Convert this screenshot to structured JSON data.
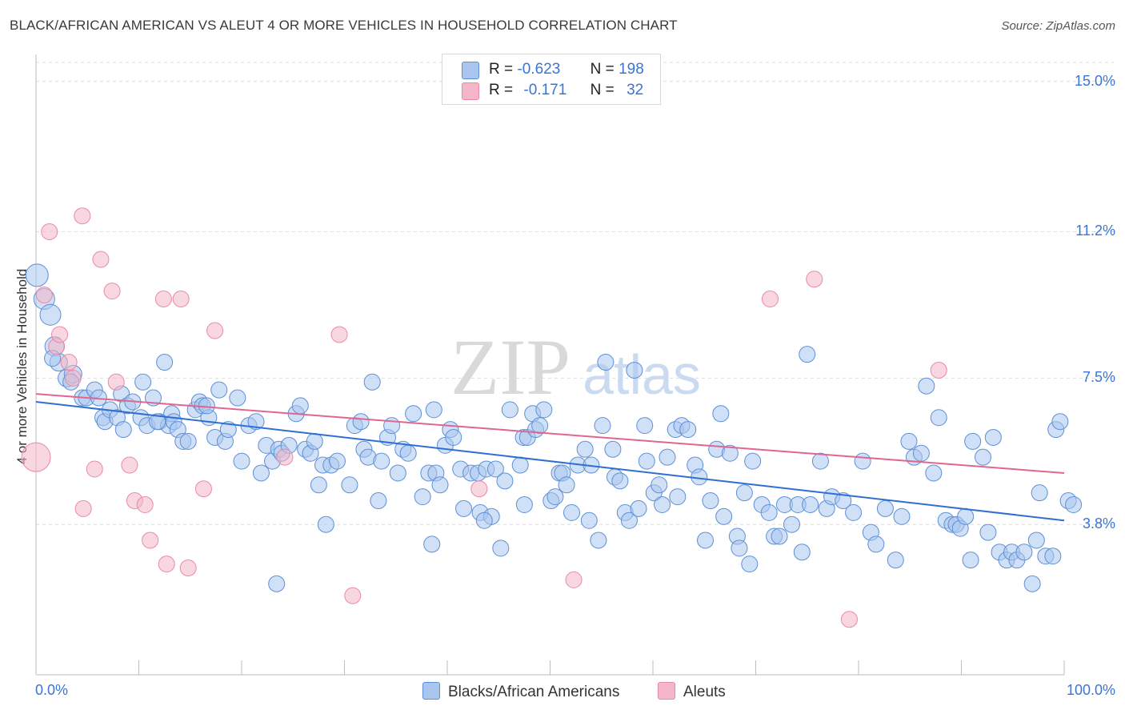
{
  "title": "BLACK/AFRICAN AMERICAN VS ALEUT 4 OR MORE VEHICLES IN HOUSEHOLD CORRELATION CHART",
  "source": "Source: ZipAtlas.com",
  "watermark": {
    "zip": "ZIP",
    "atlas": "atlas"
  },
  "colors": {
    "blue_fill": "#a9c6ef",
    "blue_stroke": "#5d8fd6",
    "blue_line": "#2f6fd4",
    "pink_fill": "#f4b6c9",
    "pink_stroke": "#e88aa6",
    "pink_line": "#e06690",
    "axis_text": "#3b74d4",
    "grid": "#dedede"
  },
  "legend_top": {
    "rows": [
      {
        "r_label": "R =",
        "r_value": "-0.623",
        "n_label": "N =",
        "n_value": "198",
        "color": "#a9c6ef"
      },
      {
        "r_label": "R =",
        "r_value": "-0.171",
        "n_label": "N =",
        "n_value": "32",
        "color": "#f4b6c9"
      }
    ]
  },
  "legend_bottom": {
    "series1": "Blacks/African Americans",
    "series2": "Aleuts"
  },
  "axes": {
    "x_min_label": "0.0%",
    "x_max_label": "100.0%",
    "ylabel": "4 or more Vehicles in Household",
    "y_ticks": [
      "3.8%",
      "7.5%",
      "11.2%",
      "15.0%"
    ]
  },
  "chart_data": {
    "type": "scatter",
    "title": "BLACK/AFRICAN AMERICAN VS ALEUT 4 OR MORE VEHICLES IN HOUSEHOLD CORRELATION CHART",
    "xlabel": "",
    "ylabel": "4 or more Vehicles in Household",
    "xlim": [
      0,
      100
    ],
    "ylim": [
      0,
      15.6
    ],
    "y_ticks": [
      3.8,
      7.5,
      11.2,
      15.0
    ],
    "grid": true,
    "legend_position": "top-center",
    "series": [
      {
        "name": "Blacks/African Americans",
        "r": -0.623,
        "n": 198,
        "trend": {
          "x": [
            0,
            100
          ],
          "y": [
            6.9,
            3.9
          ]
        },
        "points": [
          [
            0.1,
            10.1
          ],
          [
            0.8,
            9.5
          ],
          [
            1.4,
            9.1
          ],
          [
            1.8,
            8.3
          ],
          [
            2.2,
            7.9
          ],
          [
            3,
            7.5
          ],
          [
            3.6,
            7.6
          ],
          [
            4.5,
            7
          ],
          [
            4.9,
            7
          ],
          [
            5.7,
            7.2
          ],
          [
            6.5,
            6.5
          ],
          [
            6.7,
            6.4
          ],
          [
            7.2,
            6.7
          ],
          [
            7.9,
            6.5
          ],
          [
            8.3,
            7.1
          ],
          [
            8.9,
            6.8
          ],
          [
            9.4,
            6.9
          ],
          [
            10.2,
            6.5
          ],
          [
            10.4,
            7.4
          ],
          [
            10.8,
            6.3
          ],
          [
            11.4,
            7
          ],
          [
            12,
            6.4
          ],
          [
            12.5,
            7.9
          ],
          [
            12.9,
            6.3
          ],
          [
            13.2,
            6.6
          ],
          [
            13.4,
            6.4
          ],
          [
            13.8,
            6.2
          ],
          [
            14.3,
            5.9
          ],
          [
            14.8,
            5.9
          ],
          [
            15.5,
            6.7
          ],
          [
            15.9,
            6.9
          ],
          [
            16.2,
            6.8
          ],
          [
            16.8,
            6.5
          ],
          [
            17.4,
            6
          ],
          [
            17.8,
            7.2
          ],
          [
            18.4,
            5.9
          ],
          [
            18.7,
            6.2
          ],
          [
            19.6,
            7
          ],
          [
            20,
            5.4
          ],
          [
            20.7,
            6.3
          ],
          [
            21.4,
            6.4
          ],
          [
            21.9,
            5.1
          ],
          [
            22.4,
            5.8
          ],
          [
            23,
            5.4
          ],
          [
            23.6,
            5.7
          ],
          [
            23.9,
            5.6
          ],
          [
            24.6,
            5.8
          ],
          [
            25.3,
            6.6
          ],
          [
            25.7,
            6.8
          ],
          [
            26.2,
            5.7
          ],
          [
            26.7,
            5.6
          ],
          [
            27.1,
            5.9
          ],
          [
            27.5,
            4.8
          ],
          [
            27.9,
            5.3
          ],
          [
            28.7,
            5.3
          ],
          [
            29.3,
            5.4
          ],
          [
            30.5,
            4.8
          ],
          [
            31,
            6.3
          ],
          [
            31.6,
            6.4
          ],
          [
            31.9,
            5.7
          ],
          [
            32.3,
            5.5
          ],
          [
            32.7,
            7.4
          ],
          [
            33.3,
            4.4
          ],
          [
            33.6,
            5.4
          ],
          [
            34.2,
            6
          ],
          [
            34.6,
            6.3
          ],
          [
            35.2,
            5.1
          ],
          [
            35.7,
            5.7
          ],
          [
            36.2,
            5.6
          ],
          [
            36.7,
            6.6
          ],
          [
            37.6,
            4.5
          ],
          [
            38.2,
            5.1
          ],
          [
            38.7,
            6.7
          ],
          [
            38.9,
            5.1
          ],
          [
            39.3,
            4.8
          ],
          [
            39.8,
            5.8
          ],
          [
            40.3,
            6.2
          ],
          [
            40.6,
            6
          ],
          [
            41.3,
            5.2
          ],
          [
            41.6,
            4.2
          ],
          [
            42.3,
            5.1
          ],
          [
            43,
            5.1
          ],
          [
            43.2,
            4.1
          ],
          [
            43.8,
            5.2
          ],
          [
            44.3,
            4
          ],
          [
            44.7,
            5.2
          ],
          [
            45.6,
            4.9
          ],
          [
            46.1,
            6.7
          ],
          [
            47.1,
            5.3
          ],
          [
            47.4,
            6
          ],
          [
            47.8,
            6
          ],
          [
            48.3,
            6.6
          ],
          [
            48.6,
            6.2
          ],
          [
            49,
            6.3
          ],
          [
            49.4,
            6.7
          ],
          [
            50.1,
            4.4
          ],
          [
            50.5,
            4.5
          ],
          [
            50.9,
            5.1
          ],
          [
            51.2,
            5.1
          ],
          [
            51.6,
            4.8
          ],
          [
            52.1,
            4.1
          ],
          [
            52.7,
            5.3
          ],
          [
            53.4,
            5.7
          ],
          [
            53.8,
            3.9
          ],
          [
            54,
            5.3
          ],
          [
            55.1,
            6.3
          ],
          [
            55.4,
            7.9
          ],
          [
            56.1,
            5.7
          ],
          [
            56.3,
            5
          ],
          [
            56.8,
            4.9
          ],
          [
            57.3,
            4.1
          ],
          [
            57.7,
            3.9
          ],
          [
            58.2,
            7.7
          ],
          [
            58.6,
            4.2
          ],
          [
            59.2,
            6.3
          ],
          [
            59.4,
            5.4
          ],
          [
            60.1,
            4.6
          ],
          [
            60.6,
            4.8
          ],
          [
            60.9,
            4.3
          ],
          [
            61.4,
            5.5
          ],
          [
            62.2,
            6.2
          ],
          [
            62.8,
            6.3
          ],
          [
            63.4,
            6.2
          ],
          [
            64.1,
            5.3
          ],
          [
            64.5,
            5
          ],
          [
            65.1,
            3.4
          ],
          [
            65.6,
            4.4
          ],
          [
            66.2,
            5.7
          ],
          [
            66.6,
            6.6
          ],
          [
            66.9,
            4
          ],
          [
            67.5,
            5.6
          ],
          [
            68.2,
            3.5
          ],
          [
            68.4,
            3.2
          ],
          [
            68.9,
            4.6
          ],
          [
            69.4,
            2.8
          ],
          [
            69.7,
            5.4
          ],
          [
            70.6,
            4.3
          ],
          [
            71.3,
            4.1
          ],
          [
            71.8,
            3.5
          ],
          [
            72.3,
            3.5
          ],
          [
            72.8,
            4.3
          ],
          [
            73.5,
            3.8
          ],
          [
            74.1,
            4.3
          ],
          [
            74.5,
            3.1
          ],
          [
            75,
            8.1
          ],
          [
            75.3,
            4.3
          ],
          [
            76.3,
            5.4
          ],
          [
            76.9,
            4.2
          ],
          [
            77.4,
            4.5
          ],
          [
            78.5,
            4.4
          ],
          [
            79.5,
            4.1
          ],
          [
            80.4,
            5.4
          ],
          [
            81.2,
            3.6
          ],
          [
            81.7,
            3.3
          ],
          [
            82.6,
            4.2
          ],
          [
            83.6,
            2.9
          ],
          [
            84.2,
            4
          ],
          [
            84.9,
            5.9
          ],
          [
            85.4,
            5.5
          ],
          [
            86.1,
            5.6
          ],
          [
            86.6,
            7.3
          ],
          [
            87.3,
            5.1
          ],
          [
            87.8,
            6.5
          ],
          [
            88.5,
            3.9
          ],
          [
            89.1,
            3.8
          ],
          [
            89.5,
            3.8
          ],
          [
            89.9,
            3.7
          ],
          [
            90.4,
            4
          ],
          [
            90.9,
            2.9
          ],
          [
            91.1,
            5.9
          ],
          [
            92.1,
            5.5
          ],
          [
            92.6,
            3.6
          ],
          [
            93.1,
            6
          ],
          [
            93.7,
            3.1
          ],
          [
            94.4,
            2.9
          ],
          [
            94.9,
            3.1
          ],
          [
            95.4,
            2.9
          ],
          [
            96.1,
            3.1
          ],
          [
            96.9,
            2.3
          ],
          [
            97.3,
            3.4
          ],
          [
            97.6,
            4.6
          ],
          [
            98.2,
            3
          ],
          [
            98.9,
            3
          ],
          [
            99.2,
            6.2
          ],
          [
            99.6,
            6.4
          ],
          [
            100.4,
            4.4
          ],
          [
            100.9,
            4.3
          ],
          [
            1.6,
            8
          ],
          [
            3.4,
            7.4
          ],
          [
            6.1,
            7
          ],
          [
            8.5,
            6.2
          ],
          [
            11.8,
            6.4
          ],
          [
            16.6,
            6.8
          ],
          [
            23.4,
            2.3
          ],
          [
            28.2,
            3.8
          ],
          [
            38.5,
            3.3
          ],
          [
            43.6,
            3.9
          ],
          [
            45.2,
            3.2
          ],
          [
            47.5,
            4.3
          ],
          [
            54.7,
            3.4
          ],
          [
            62.4,
            4.5
          ]
        ]
      },
      {
        "name": "Aleuts",
        "r": -0.171,
        "n": 32,
        "trend": {
          "x": [
            0,
            100
          ],
          "y": [
            7.1,
            5.1
          ]
        },
        "points": [
          [
            0,
            5.5
          ],
          [
            0.8,
            9.6
          ],
          [
            1.3,
            11.2
          ],
          [
            2,
            8.3
          ],
          [
            2.3,
            8.6
          ],
          [
            3.2,
            7.9
          ],
          [
            3.6,
            7.5
          ],
          [
            4.5,
            11.6
          ],
          [
            4.6,
            4.2
          ],
          [
            5.7,
            5.2
          ],
          [
            6.3,
            10.5
          ],
          [
            7.4,
            9.7
          ],
          [
            7.8,
            7.4
          ],
          [
            9.1,
            5.3
          ],
          [
            9.6,
            4.4
          ],
          [
            10.6,
            4.3
          ],
          [
            11.1,
            3.4
          ],
          [
            12.4,
            9.5
          ],
          [
            12.7,
            2.8
          ],
          [
            14.1,
            9.5
          ],
          [
            14.8,
            2.7
          ],
          [
            16.3,
            4.7
          ],
          [
            17.4,
            8.7
          ],
          [
            24.2,
            5.5
          ],
          [
            29.5,
            8.6
          ],
          [
            30.8,
            2
          ],
          [
            43.1,
            4.7
          ],
          [
            52.3,
            2.4
          ],
          [
            71.4,
            9.5
          ],
          [
            75.7,
            10
          ],
          [
            79.1,
            1.4
          ],
          [
            87.8,
            7.7
          ]
        ]
      }
    ]
  }
}
